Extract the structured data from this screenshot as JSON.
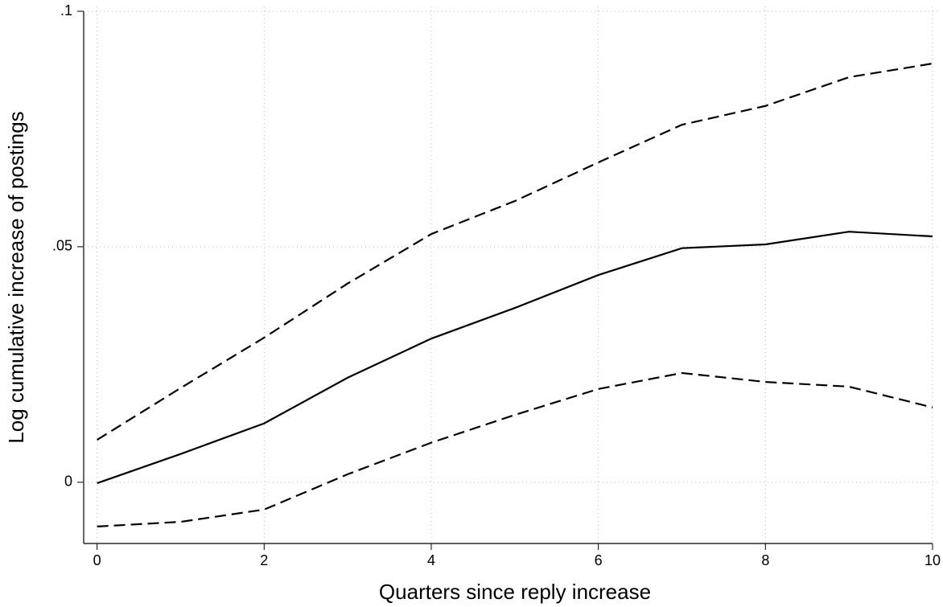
{
  "chart_data": {
    "type": "line",
    "xlabel": "Quarters since reply increase",
    "ylabel": "Log cumulative increase of postings",
    "x": [
      0,
      1,
      2,
      3,
      4,
      5,
      6,
      7,
      8,
      9,
      10
    ],
    "series": [
      {
        "color": "#000000",
        "dash": "solid",
        "values": [
          -0.0002,
          0.006,
          0.0125,
          0.0222,
          0.0305,
          0.037,
          0.044,
          0.0497,
          0.0505,
          0.0532,
          0.0522
        ]
      },
      {
        "color": "#000000",
        "dash": "dashed",
        "values": [
          0.009,
          0.02,
          0.0307,
          0.0422,
          0.0527,
          0.0597,
          0.0679,
          0.0759,
          0.0799,
          0.086,
          0.0889
        ]
      },
      {
        "color": "#000000",
        "dash": "dashed",
        "values": [
          -0.0094,
          -0.0084,
          -0.0058,
          0.0017,
          0.0084,
          0.0143,
          0.0198,
          0.0232,
          0.0213,
          0.0203,
          0.0159
        ]
      }
    ],
    "xlim": [
      -0.16,
      10
    ],
    "ylim": [
      -0.013,
      0.1
    ],
    "xticks": [
      0,
      2,
      4,
      6,
      8,
      10
    ],
    "yticks": [
      {
        "value": 0,
        "label": "0"
      },
      {
        "value": 0.05,
        "label": ".05"
      },
      {
        "value": 0.1,
        "label": ".1"
      }
    ],
    "grid": true
  }
}
